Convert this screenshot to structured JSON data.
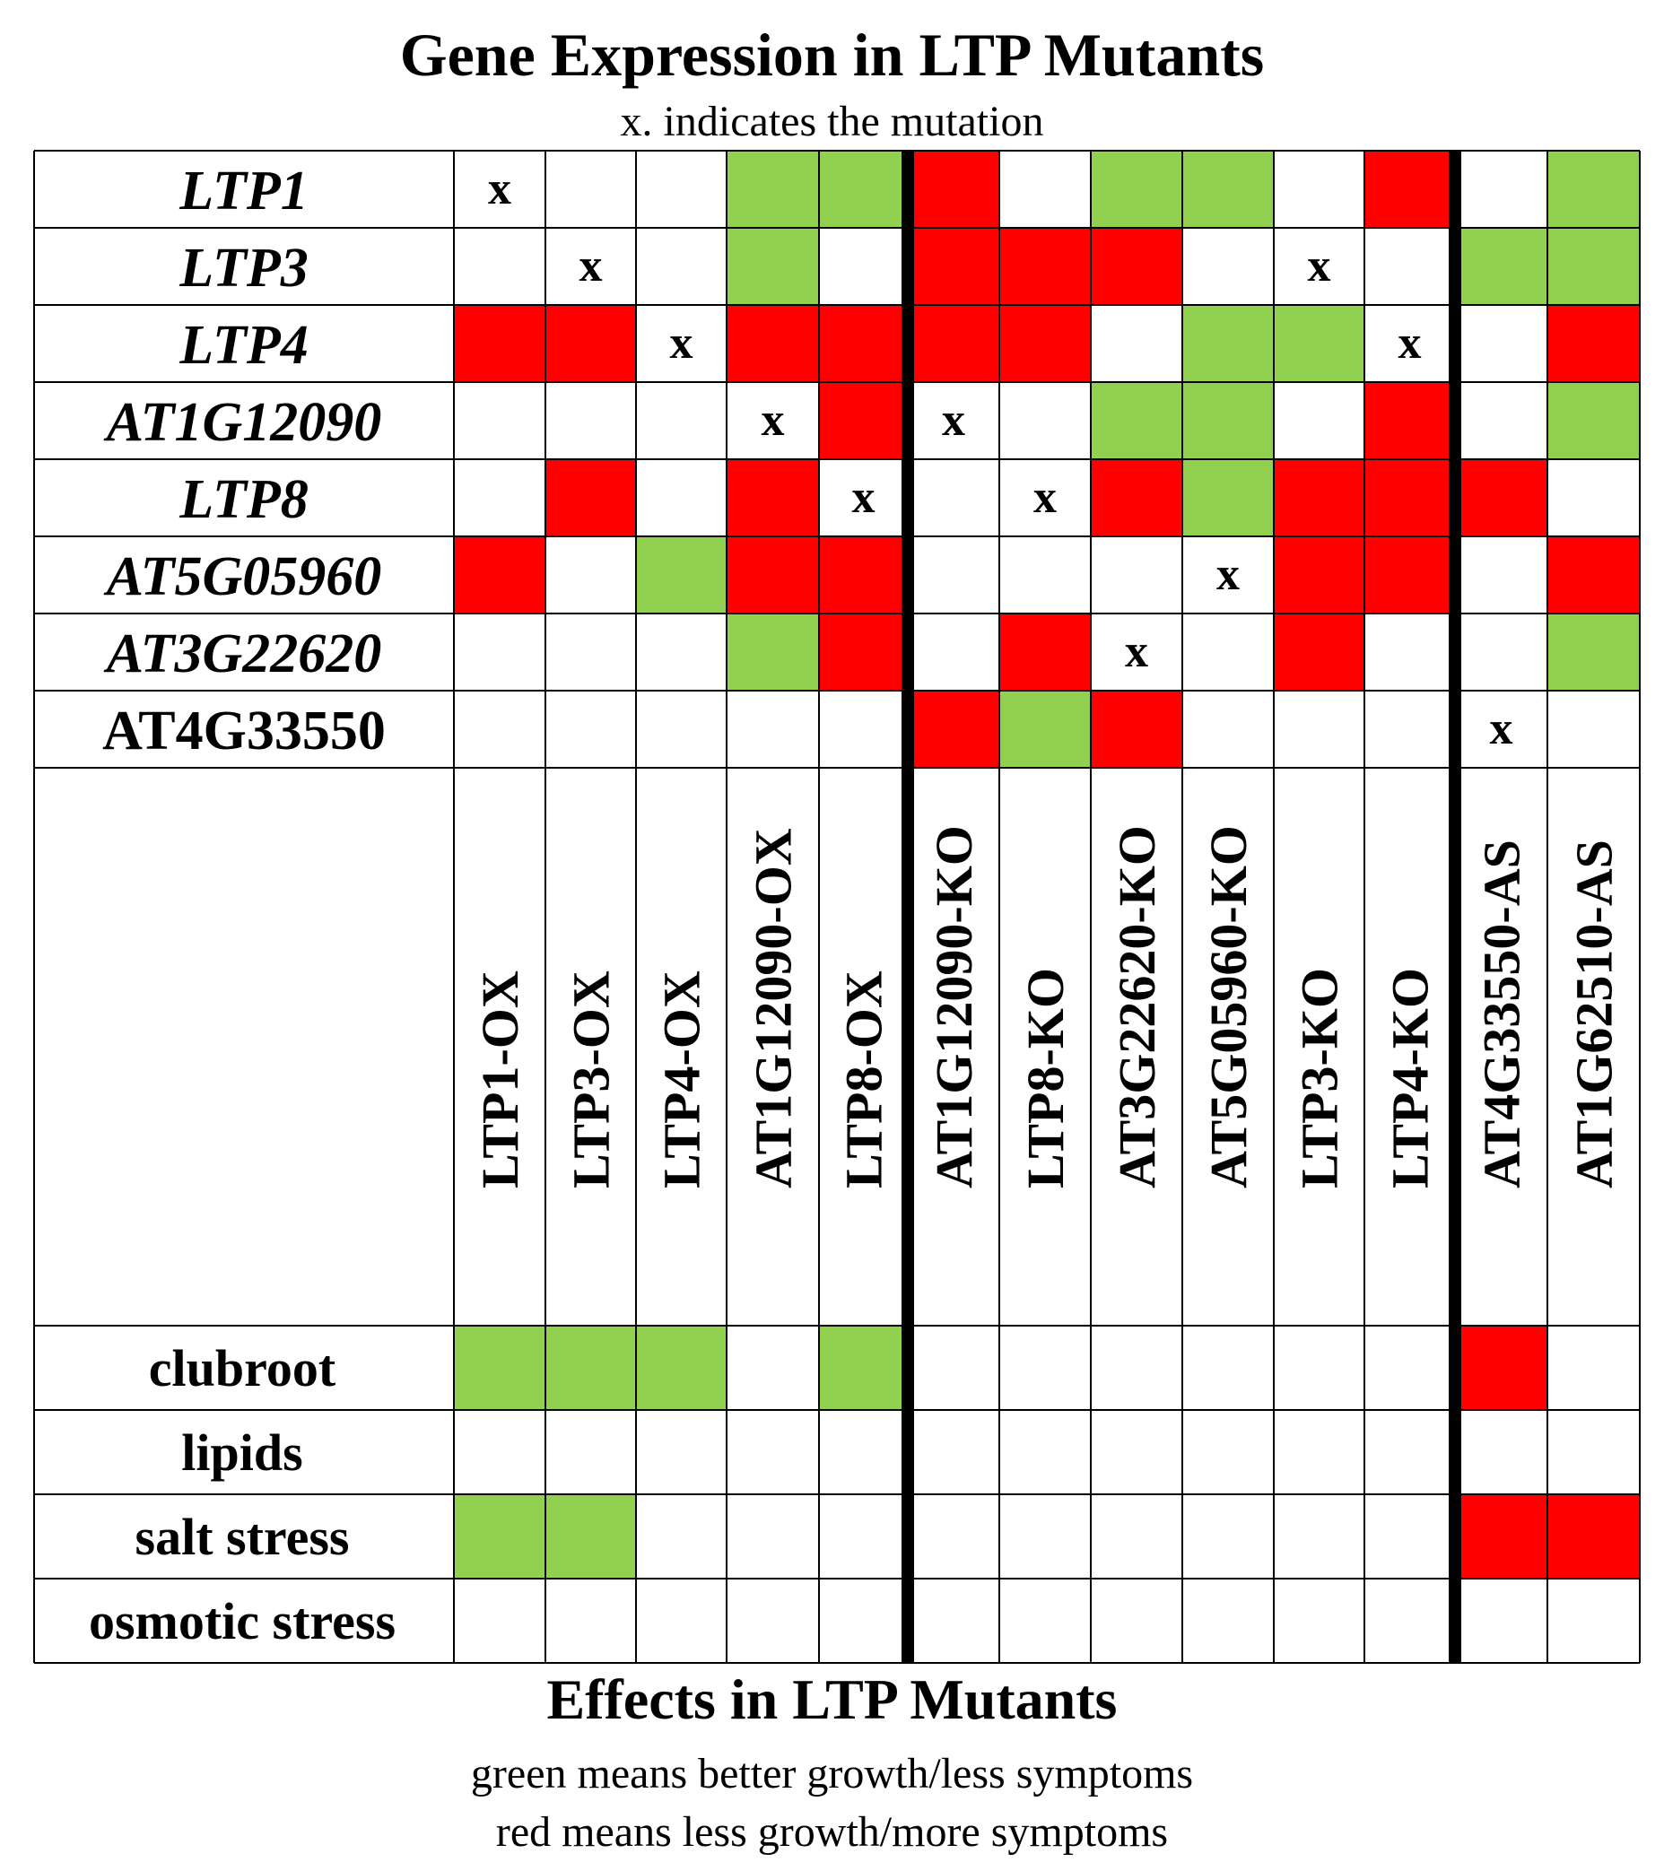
{
  "chart_data": {
    "type": "heatmap",
    "title": "Gene Expression in LTP Mutants",
    "subtitle": "x. indicates the mutation",
    "mutants": [
      "LTP1-OX",
      "LTP3-OX",
      "LTP4-OX",
      "AT1G12090-OX",
      "LTP8-OX",
      "AT1G12090-KO",
      "LTP8-KO",
      "AT3G22620-KO",
      "AT5G05960-KO",
      "LTP3-KO",
      "LTP4-KO",
      "AT4G33550-AS",
      "AT1G62510-AS"
    ],
    "mutant_groups": [
      "overexpression",
      "overexpression",
      "overexpression",
      "overexpression",
      "overexpression",
      "knockout",
      "knockout",
      "knockout",
      "knockout",
      "knockout",
      "knockout",
      "antisense",
      "antisense"
    ],
    "genes": [
      "LTP1",
      "LTP3",
      "LTP4",
      "AT1G12090",
      "LTP8",
      "AT5G05960",
      "AT3G22620",
      "AT4G33550"
    ],
    "gene_italic": [
      true,
      true,
      true,
      true,
      true,
      true,
      true,
      false
    ],
    "expression": [
      [
        "x",
        "",
        "",
        "G",
        "G",
        "R",
        "",
        "G",
        "G",
        "",
        "R",
        "",
        "G"
      ],
      [
        "",
        "x",
        "",
        "G",
        "",
        "R",
        "R",
        "R",
        "",
        "x",
        "",
        "G",
        "G"
      ],
      [
        "R",
        "R",
        "x",
        "R",
        "R",
        "R",
        "R",
        "",
        "G",
        "G",
        "x",
        "",
        "R"
      ],
      [
        "",
        "",
        "",
        "x",
        "R",
        "x",
        "",
        "G",
        "G",
        "",
        "R",
        "",
        "G"
      ],
      [
        "",
        "R",
        "",
        "R",
        "x",
        "",
        "x",
        "R",
        "G",
        "R",
        "R",
        "R",
        ""
      ],
      [
        "R",
        "",
        "G",
        "R",
        "R",
        "",
        "",
        "",
        "x",
        "R",
        "R",
        "",
        "R"
      ],
      [
        "",
        "",
        "",
        "G",
        "R",
        "",
        "R",
        "x",
        "",
        "R",
        "",
        "",
        "G"
      ],
      [
        "",
        "",
        "",
        "",
        "",
        "R",
        "G",
        "R",
        "",
        "",
        "",
        "x",
        ""
      ]
    ],
    "effects_title": "Effects in LTP Mutants",
    "effects": [
      "clubroot",
      "lipids",
      "salt stress",
      "osmotic stress"
    ],
    "effect_values": [
      [
        "G",
        "G",
        "G",
        "",
        "G",
        "",
        "",
        "",
        "",
        "",
        "",
        "R",
        ""
      ],
      [
        "",
        "",
        "",
        "",
        "",
        "",
        "",
        "",
        "",
        "",
        "",
        "",
        ""
      ],
      [
        "G",
        "G",
        "",
        "",
        "",
        "",
        "",
        "",
        "",
        "",
        "",
        "R",
        "R"
      ],
      [
        "",
        "",
        "",
        "",
        "",
        "",
        "",
        "",
        "",
        "",
        "",
        "",
        ""
      ]
    ],
    "legend": {
      "green": "green means better growth/less symptoms",
      "red": "red means less growth/more symptoms"
    },
    "colors": {
      "green": "#92d050",
      "red": "#ff0000",
      "grid": "#000000"
    }
  }
}
